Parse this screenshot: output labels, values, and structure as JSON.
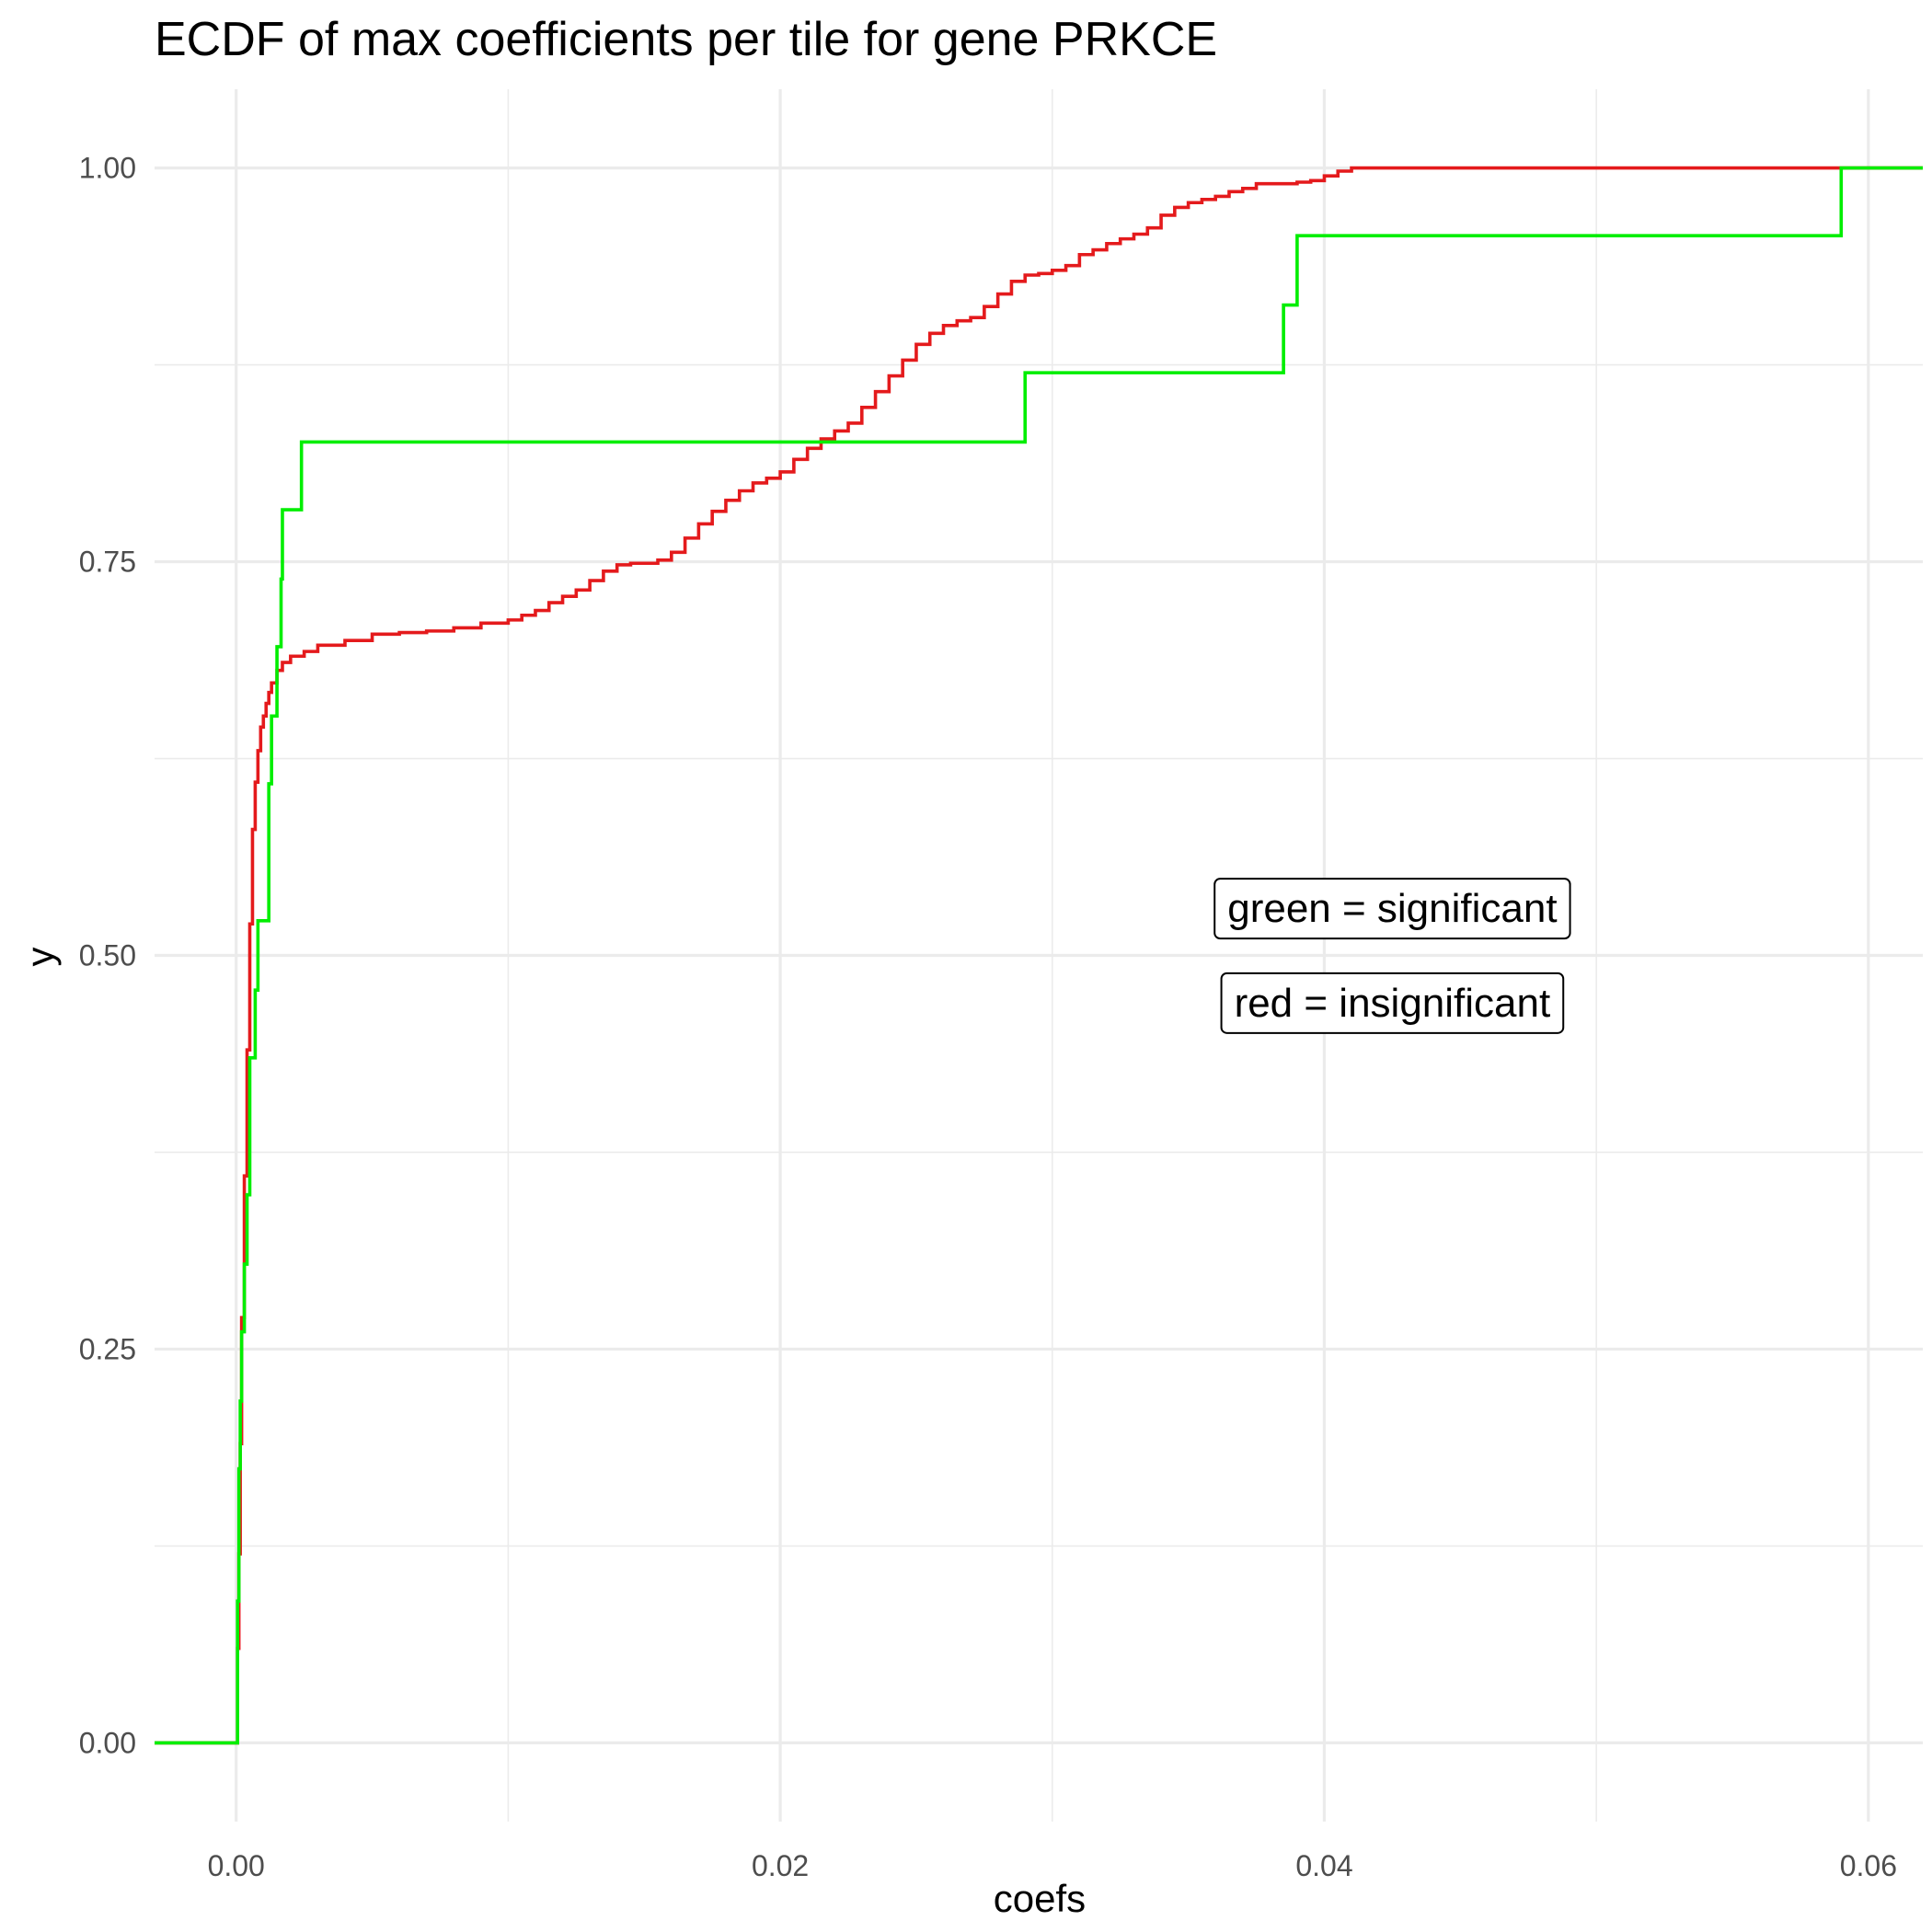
{
  "chart_data": {
    "type": "line",
    "step": true,
    "title": "ECDF of max coefficients per tile for gene PRKCE",
    "xlabel": "coefs",
    "ylabel": "y",
    "xlim": [
      -0.003,
      0.062
    ],
    "ylim": [
      -0.05,
      1.05
    ],
    "x_ticks": [
      0.0,
      0.02,
      0.04,
      0.06
    ],
    "x_tick_labels": [
      "0.00",
      "0.02",
      "0.04",
      "0.06"
    ],
    "y_ticks": [
      0.0,
      0.25,
      0.5,
      0.75,
      1.0
    ],
    "y_tick_labels": [
      "0.00",
      "0.25",
      "0.50",
      "0.75",
      "1.00"
    ],
    "grid": true,
    "annotations": [
      {
        "text": "green = significant",
        "x": 0.0425,
        "y": 0.53
      },
      {
        "text": "red = insignificant",
        "x": 0.0425,
        "y": 0.47
      }
    ],
    "series": [
      {
        "color": "#e41a1c",
        "x": [
          -0.003,
          0.0,
          5e-05,
          0.0001,
          0.00015,
          0.0002,
          0.0003,
          0.0004,
          0.0005,
          0.0006,
          0.0007,
          0.0008,
          0.0009,
          0.001,
          0.0011,
          0.0012,
          0.0013,
          0.0015,
          0.0017,
          0.002,
          0.0025,
          0.003,
          0.004,
          0.005,
          0.006,
          0.007,
          0.008,
          0.009,
          0.01,
          0.0105,
          0.011,
          0.0115,
          0.012,
          0.0125,
          0.013,
          0.0135,
          0.014,
          0.0145,
          0.015,
          0.0155,
          0.016,
          0.0165,
          0.017,
          0.0175,
          0.018,
          0.0185,
          0.019,
          0.0195,
          0.02,
          0.0205,
          0.021,
          0.0215,
          0.022,
          0.0225,
          0.023,
          0.0235,
          0.024,
          0.0245,
          0.025,
          0.0255,
          0.026,
          0.0265,
          0.027,
          0.0275,
          0.028,
          0.0285,
          0.029,
          0.0295,
          0.03,
          0.0305,
          0.031,
          0.0315,
          0.032,
          0.0325,
          0.033,
          0.0335,
          0.034,
          0.0345,
          0.035,
          0.0355,
          0.036,
          0.0365,
          0.037,
          0.0375,
          0.038,
          0.0385,
          0.039,
          0.0395,
          0.04,
          0.0405,
          0.041,
          0.059,
          0.062
        ],
        "y": [
          0.0,
          0.0,
          0.06,
          0.12,
          0.19,
          0.27,
          0.36,
          0.44,
          0.52,
          0.58,
          0.61,
          0.63,
          0.645,
          0.652,
          0.66,
          0.667,
          0.673,
          0.681,
          0.686,
          0.69,
          0.693,
          0.697,
          0.7,
          0.704,
          0.705,
          0.706,
          0.708,
          0.711,
          0.713,
          0.716,
          0.719,
          0.724,
          0.728,
          0.732,
          0.738,
          0.744,
          0.748,
          0.749,
          0.749,
          0.751,
          0.756,
          0.765,
          0.774,
          0.782,
          0.789,
          0.795,
          0.8,
          0.803,
          0.807,
          0.815,
          0.822,
          0.828,
          0.833,
          0.838,
          0.848,
          0.858,
          0.868,
          0.878,
          0.888,
          0.895,
          0.9,
          0.903,
          0.905,
          0.912,
          0.92,
          0.928,
          0.932,
          0.933,
          0.935,
          0.938,
          0.945,
          0.948,
          0.952,
          0.955,
          0.958,
          0.962,
          0.97,
          0.975,
          0.978,
          0.98,
          0.982,
          0.985,
          0.987,
          0.99,
          0.99,
          0.99,
          0.991,
          0.992,
          0.995,
          0.998,
          1.0,
          1.0,
          1.0
        ]
      },
      {
        "color": "#00ee00",
        "x": [
          -0.003,
          0.0,
          5e-05,
          0.0001,
          0.00015,
          0.0002,
          0.0003,
          0.0004,
          0.0005,
          0.0007,
          0.0008,
          0.0012,
          0.0013,
          0.0015,
          0.00165,
          0.0017,
          0.00175,
          0.0018,
          0.0024,
          0.029,
          0.0385,
          0.039,
          0.059,
          0.062
        ],
        "y": [
          0.0,
          0.0,
          0.09,
          0.174,
          0.217,
          0.261,
          0.304,
          0.348,
          0.435,
          0.478,
          0.522,
          0.609,
          0.652,
          0.696,
          0.739,
          0.783,
          0.783,
          0.783,
          0.826,
          0.87,
          0.913,
          0.957,
          1.0,
          1.0
        ]
      }
    ]
  }
}
